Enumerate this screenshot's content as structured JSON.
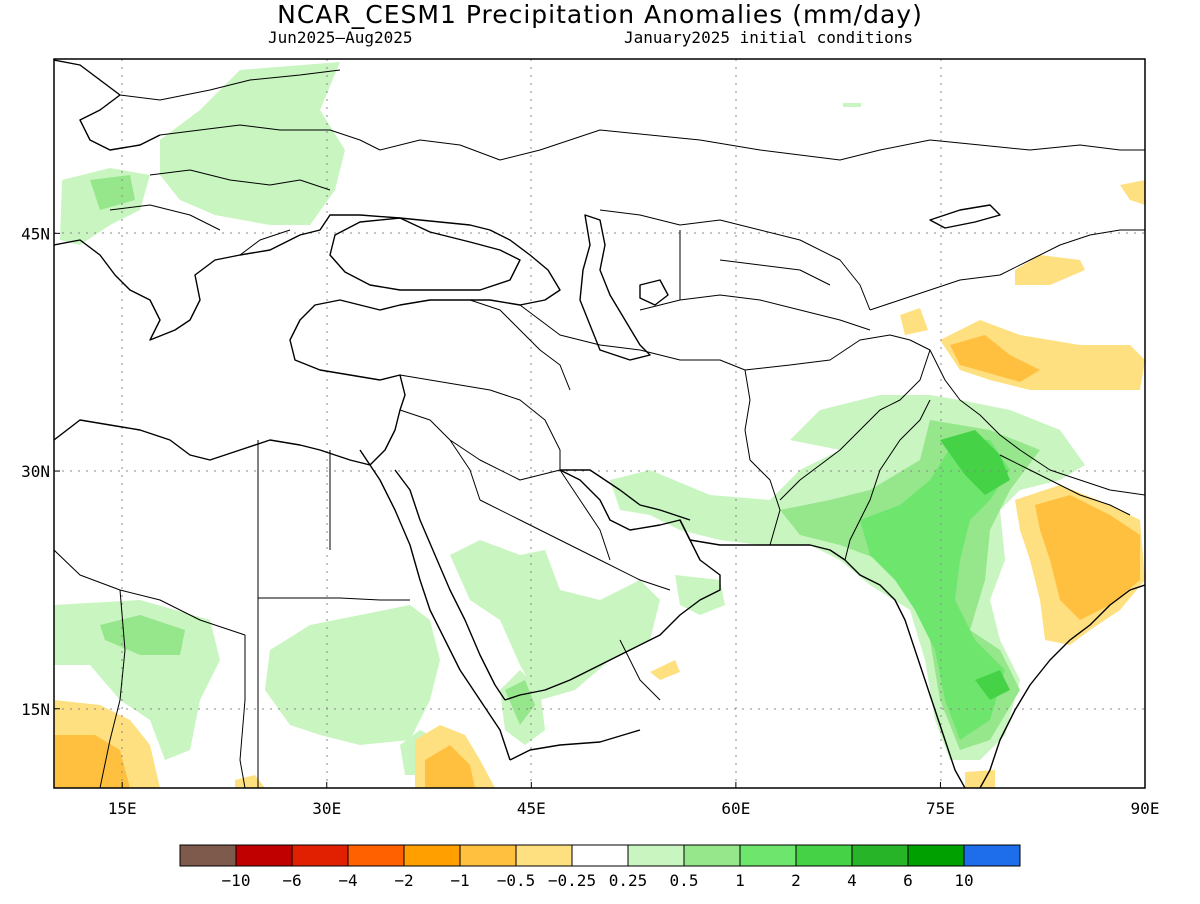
{
  "title": "NCAR_CESM1 Precipitation Anomalies (mm/day)",
  "subtitle_left": "Jun2025–Aug2025",
  "subtitle_right": "January2025 initial conditions",
  "map": {
    "lon_range": [
      10,
      90
    ],
    "lat_range": [
      10,
      56
    ],
    "lon_ticks": [
      {
        "value": 15,
        "label": "15E"
      },
      {
        "value": 30,
        "label": "30E"
      },
      {
        "value": 45,
        "label": "45E"
      },
      {
        "value": 60,
        "label": "60E"
      },
      {
        "value": 75,
        "label": "75E"
      },
      {
        "value": 90,
        "label": "90E"
      }
    ],
    "lat_ticks": [
      {
        "value": 45,
        "label": "45N"
      },
      {
        "value": 30,
        "label": "30N"
      },
      {
        "value": 15,
        "label": "15N"
      }
    ],
    "grid": "dotted"
  },
  "colorbar": {
    "colors": [
      "#7d5a4b",
      "#c00000",
      "#e02000",
      "#ff6000",
      "#ffa000",
      "#ffc040",
      "#ffe080",
      "#ffffff",
      "#c8f5c0",
      "#96e68c",
      "#6ee66e",
      "#46d246",
      "#28b428",
      "#00a000",
      "#1e6eeb"
    ],
    "labels": [
      "−10",
      "−6",
      "−4",
      "−2",
      "−1",
      "−0.5",
      "−0.25",
      "0.25",
      "0.5",
      "1",
      "2",
      "4",
      "6",
      "10"
    ]
  }
}
